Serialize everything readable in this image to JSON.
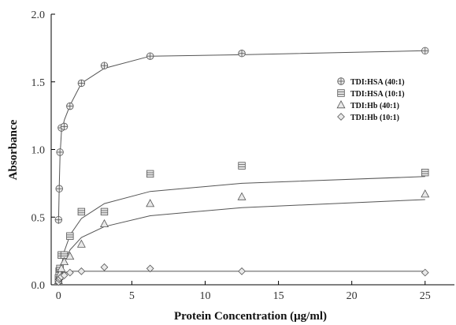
{
  "chart_data": {
    "type": "scatter",
    "xlabel": "Protein Concentration (μg/ml)",
    "ylabel": "Absorbance",
    "xlim": [
      -0.5,
      27
    ],
    "ylim": [
      0,
      2.0
    ],
    "xticks": [
      "0",
      "5",
      "10",
      "15",
      "20",
      "25"
    ],
    "yticks": [
      "0.0",
      "0.5",
      "1.0",
      "1.5",
      "2.0"
    ],
    "grid": false,
    "legend_position": "right",
    "series": [
      {
        "name": "TDI:HSA (40:1)",
        "marker": "circle-cross",
        "x": [
          0.0,
          0.049,
          0.098,
          0.195,
          0.39,
          0.78,
          1.56,
          3.125,
          6.25,
          12.5,
          25
        ],
        "y": [
          0.48,
          0.71,
          0.98,
          1.16,
          1.17,
          1.32,
          1.49,
          1.62,
          1.69,
          1.71,
          1.73
        ],
        "fit_x": [
          0,
          0.05,
          0.1,
          0.2,
          0.4,
          0.8,
          1.56,
          3.125,
          6.25,
          12.5,
          25
        ],
        "fit_y": [
          0.45,
          0.72,
          0.95,
          1.13,
          1.22,
          1.33,
          1.49,
          1.6,
          1.69,
          1.7,
          1.73
        ]
      },
      {
        "name": "TDI:HSA (10:1)",
        "marker": "square-lines",
        "x": [
          0.0,
          0.049,
          0.098,
          0.195,
          0.39,
          0.78,
          1.56,
          3.125,
          6.25,
          12.5,
          25
        ],
        "y": [
          0.05,
          0.1,
          0.12,
          0.22,
          0.22,
          0.36,
          0.54,
          0.54,
          0.82,
          0.88,
          0.83
        ],
        "fit_x": [
          0,
          0.2,
          0.4,
          0.8,
          1.56,
          3.125,
          6.25,
          12.5,
          25
        ],
        "fit_y": [
          0.04,
          0.14,
          0.25,
          0.37,
          0.49,
          0.6,
          0.69,
          0.75,
          0.8
        ]
      },
      {
        "name": "TDI:Hb (40:1)",
        "marker": "triangle",
        "x": [
          0.0,
          0.049,
          0.098,
          0.195,
          0.39,
          0.78,
          1.56,
          3.125,
          6.25,
          12.5,
          25
        ],
        "y": [
          0.03,
          0.06,
          0.08,
          0.12,
          0.17,
          0.21,
          0.3,
          0.45,
          0.6,
          0.65,
          0.67
        ],
        "fit_x": [
          0,
          0.2,
          0.4,
          0.8,
          1.56,
          3.125,
          6.25,
          12.5,
          25
        ],
        "fit_y": [
          0.02,
          0.11,
          0.18,
          0.26,
          0.35,
          0.43,
          0.51,
          0.57,
          0.63
        ]
      },
      {
        "name": "TDI:Hb (10:1)",
        "marker": "diamond",
        "x": [
          0.0,
          0.049,
          0.098,
          0.195,
          0.39,
          0.78,
          1.56,
          3.125,
          6.25,
          12.5,
          25
        ],
        "y": [
          0.02,
          0.04,
          0.05,
          0.06,
          0.07,
          0.09,
          0.1,
          0.13,
          0.12,
          0.1,
          0.09
        ],
        "fit_x": [
          0,
          0.2,
          0.4,
          0.8,
          1.56,
          3.125,
          6.25,
          12.5,
          25
        ],
        "fit_y": [
          0.02,
          0.07,
          0.09,
          0.1,
          0.1,
          0.1,
          0.1,
          0.1,
          0.1
        ]
      }
    ]
  }
}
